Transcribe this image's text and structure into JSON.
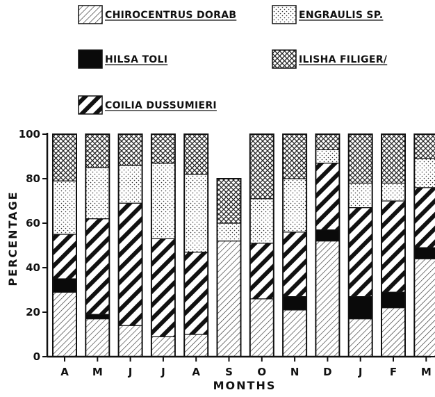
{
  "chart_data": {
    "type": "bar",
    "stacked": true,
    "categories": [
      "A",
      "M",
      "J",
      "J",
      "A",
      "S",
      "O",
      "N",
      "D",
      "J",
      "F",
      "M"
    ],
    "xlabel": "MONTHS",
    "ylabel": "PERCENTAGE",
    "ylim": [
      0,
      100
    ],
    "yticks": [
      0,
      20,
      40,
      60,
      80,
      100
    ],
    "legend_position": "top",
    "series": [
      {
        "name": "CHIROCENTRUS DORAB",
        "pattern": "diagonal-hatch",
        "values": [
          29,
          17,
          14,
          9,
          10,
          52,
          26,
          21,
          52,
          17,
          22,
          44
        ]
      },
      {
        "name": "HILSA TOLI",
        "pattern": "solid-black",
        "values": [
          6,
          2,
          0,
          0,
          0,
          0,
          0,
          6,
          5,
          10,
          7,
          5
        ]
      },
      {
        "name": "COILIA DUSSUMIERI",
        "pattern": "bold-stripes",
        "values": [
          20,
          43,
          55,
          44,
          37,
          0,
          25,
          29,
          30,
          40,
          41,
          27
        ]
      },
      {
        "name": "ENGRAULIS SP.",
        "pattern": "dots",
        "values": [
          24,
          23,
          17,
          34,
          35,
          8,
          20,
          24,
          6,
          11,
          8,
          13
        ]
      },
      {
        "name": "ILISHA FILIGERA",
        "pattern": "crosshatch",
        "values": [
          21,
          15,
          14,
          13,
          18,
          20,
          29,
          20,
          7,
          22,
          22,
          11
        ]
      }
    ]
  },
  "legend": {
    "items": [
      {
        "label": "CHIROCENTRUS DORAB",
        "pattern": "diagonal-hatch"
      },
      {
        "label": "ENGRAULIS SP.",
        "pattern": "dots"
      },
      {
        "label": "HILSA TOLI",
        "pattern": "solid-black"
      },
      {
        "label": "ILISHA FILIGER/",
        "pattern": "crosshatch"
      },
      {
        "label": "COILIA DUSSUMIERI",
        "pattern": "bold-stripes"
      }
    ]
  }
}
